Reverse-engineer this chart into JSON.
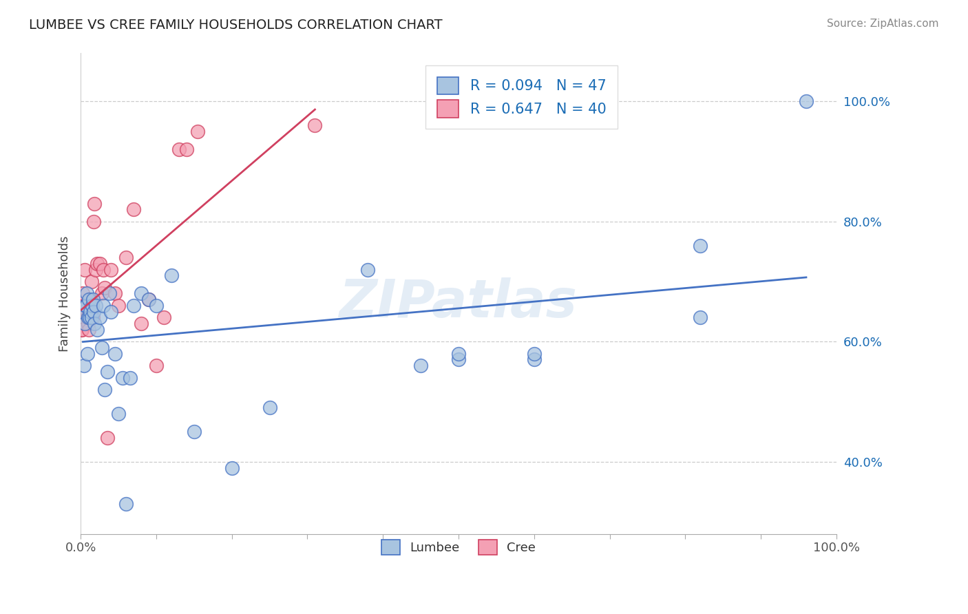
{
  "title": "LUMBEE VS CREE FAMILY HOUSEHOLDS CORRELATION CHART",
  "source": "Source: ZipAtlas.com",
  "ylabel": "Family Households",
  "xlim": [
    0,
    1.0
  ],
  "ylim": [
    0.28,
    1.08
  ],
  "ytick_labels_right": [
    "40.0%",
    "60.0%",
    "80.0%",
    "100.0%"
  ],
  "ytick_positions_right": [
    0.4,
    0.6,
    0.8,
    1.0
  ],
  "lumbee_R": 0.094,
  "lumbee_N": 47,
  "cree_R": 0.647,
  "cree_N": 40,
  "lumbee_color": "#a8c4e0",
  "cree_color": "#f4a0b4",
  "lumbee_line_color": "#4472c4",
  "cree_line_color": "#d04060",
  "watermark": "ZIPatlas",
  "lumbee_x": [
    0.003,
    0.004,
    0.005,
    0.006,
    0.007,
    0.008,
    0.009,
    0.01,
    0.011,
    0.012,
    0.013,
    0.014,
    0.015,
    0.016,
    0.017,
    0.018,
    0.02,
    0.022,
    0.025,
    0.028,
    0.03,
    0.032,
    0.035,
    0.038,
    0.04,
    0.045,
    0.05,
    0.055,
    0.06,
    0.065,
    0.07,
    0.08,
    0.09,
    0.1,
    0.12,
    0.15,
    0.2,
    0.25,
    0.38,
    0.45,
    0.5,
    0.5,
    0.6,
    0.6,
    0.82,
    0.82,
    0.96
  ],
  "lumbee_y": [
    0.65,
    0.56,
    0.63,
    0.66,
    0.66,
    0.68,
    0.58,
    0.64,
    0.67,
    0.64,
    0.65,
    0.64,
    0.66,
    0.67,
    0.65,
    0.63,
    0.66,
    0.62,
    0.64,
    0.59,
    0.66,
    0.52,
    0.55,
    0.68,
    0.65,
    0.58,
    0.48,
    0.54,
    0.33,
    0.54,
    0.66,
    0.68,
    0.67,
    0.66,
    0.71,
    0.45,
    0.39,
    0.49,
    0.72,
    0.56,
    0.57,
    0.58,
    0.57,
    0.58,
    0.76,
    0.64,
    1.0
  ],
  "cree_x": [
    0.001,
    0.002,
    0.003,
    0.004,
    0.005,
    0.006,
    0.006,
    0.007,
    0.008,
    0.009,
    0.01,
    0.01,
    0.011,
    0.012,
    0.013,
    0.014,
    0.015,
    0.016,
    0.017,
    0.018,
    0.02,
    0.022,
    0.025,
    0.028,
    0.03,
    0.032,
    0.035,
    0.04,
    0.045,
    0.05,
    0.06,
    0.07,
    0.08,
    0.09,
    0.1,
    0.11,
    0.13,
    0.14,
    0.155,
    0.31
  ],
  "cree_y": [
    0.62,
    0.62,
    0.68,
    0.66,
    0.72,
    0.66,
    0.65,
    0.66,
    0.65,
    0.64,
    0.64,
    0.63,
    0.62,
    0.65,
    0.67,
    0.7,
    0.66,
    0.64,
    0.8,
    0.83,
    0.72,
    0.73,
    0.73,
    0.68,
    0.72,
    0.69,
    0.44,
    0.72,
    0.68,
    0.66,
    0.74,
    0.82,
    0.63,
    0.67,
    0.56,
    0.64,
    0.92,
    0.92,
    0.95,
    0.96
  ]
}
